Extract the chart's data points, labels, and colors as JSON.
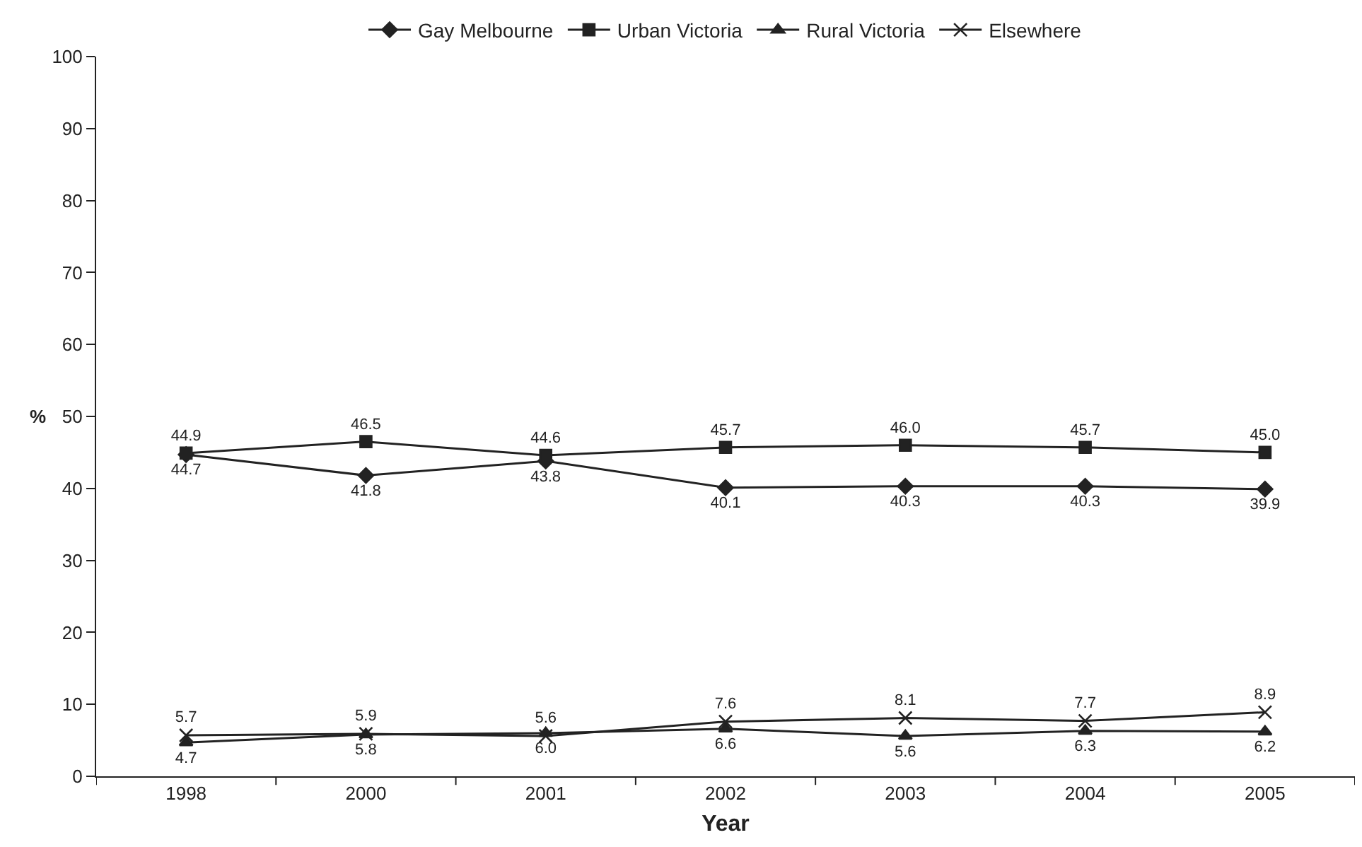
{
  "chart_data": {
    "type": "line",
    "xlabel": "Year",
    "ylabel": "%",
    "categories": [
      "1998",
      "2000",
      "2001",
      "2002",
      "2003",
      "2004",
      "2005"
    ],
    "series": [
      {
        "name": "Gay Melbourne",
        "color": "#222222",
        "marker": "diamond",
        "values": [
          44.7,
          41.8,
          43.8,
          40.1,
          40.3,
          40.3,
          39.9
        ],
        "value_labels": [
          "44.7",
          "41.8",
          "43.8",
          "40.1",
          "40.3",
          "40.3",
          "39.9"
        ]
      },
      {
        "name": "Urban Victoria",
        "color": "#222222",
        "marker": "square",
        "values": [
          44.9,
          46.5,
          44.6,
          45.7,
          46.0,
          45.7,
          45.0
        ],
        "value_labels": [
          "44.9",
          "46.5",
          "44.6",
          "45.7",
          "46.0",
          "45.7",
          "45.0"
        ]
      },
      {
        "name": "Rural Victoria",
        "color": "#222222",
        "marker": "triangle",
        "values": [
          4.7,
          5.8,
          6.0,
          6.6,
          5.6,
          6.3,
          6.2
        ],
        "value_labels": [
          "4.7",
          "5.8",
          "6.0",
          "6.6",
          "5.6",
          "6.3",
          "6.2"
        ]
      },
      {
        "name": "Elsewhere",
        "color": "#222222",
        "marker": "cross",
        "values": [
          5.7,
          5.9,
          5.6,
          7.6,
          8.1,
          7.7,
          8.9
        ],
        "value_labels": [
          "5.7",
          "5.9",
          "5.6",
          "7.6",
          "8.1",
          "7.7",
          "8.9"
        ]
      }
    ],
    "ylim": [
      0,
      100
    ],
    "yticks": [
      0,
      10,
      20,
      30,
      40,
      50,
      60,
      70,
      80,
      90,
      100
    ],
    "legend": "top",
    "line_style": "solid"
  }
}
